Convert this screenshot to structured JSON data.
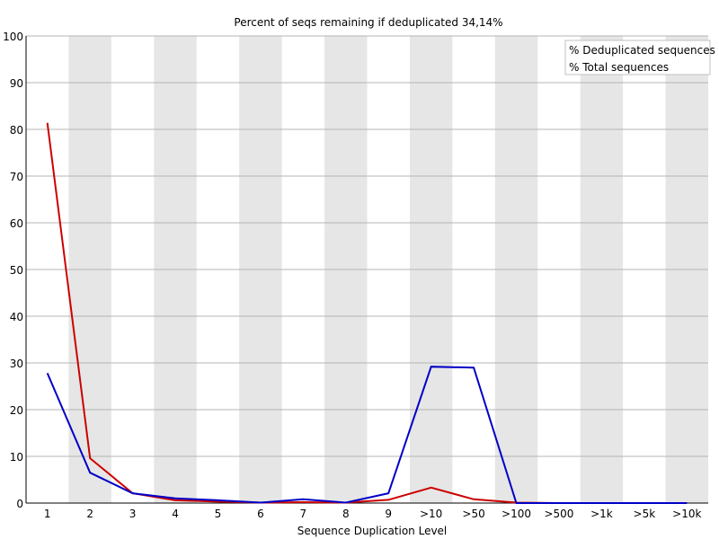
{
  "chart_data": {
    "type": "line",
    "title": "Percent of seqs remaining if deduplicated 34,14%",
    "xlabel": "Sequence Duplication Level",
    "ylabel": "",
    "ylim": [
      0,
      100
    ],
    "yticks": [
      0,
      10,
      20,
      30,
      40,
      50,
      60,
      70,
      80,
      90,
      100
    ],
    "categories": [
      "1",
      "2",
      "3",
      "4",
      "5",
      "6",
      "7",
      "8",
      "9",
      ">10",
      ">50",
      ">100",
      ">500",
      ">1k",
      ">5k",
      ">10k"
    ],
    "grid": true,
    "legend_position": "top-right",
    "series": [
      {
        "name": "% Deduplicated sequences",
        "color": "#cc0000",
        "values": [
          81.4,
          9.6,
          2.1,
          0.6,
          0.3,
          0.1,
          0.2,
          0.1,
          0.7,
          3.3,
          0.8,
          0.1,
          0.0,
          0.0,
          0.0,
          0.0
        ]
      },
      {
        "name": "% Total sequences",
        "color": "#0000c8",
        "values": [
          27.8,
          6.5,
          2.1,
          1.0,
          0.6,
          0.1,
          0.8,
          0.1,
          2.1,
          29.2,
          29.0,
          0.0,
          0.0,
          0.0,
          0.0,
          0.0
        ]
      }
    ]
  }
}
